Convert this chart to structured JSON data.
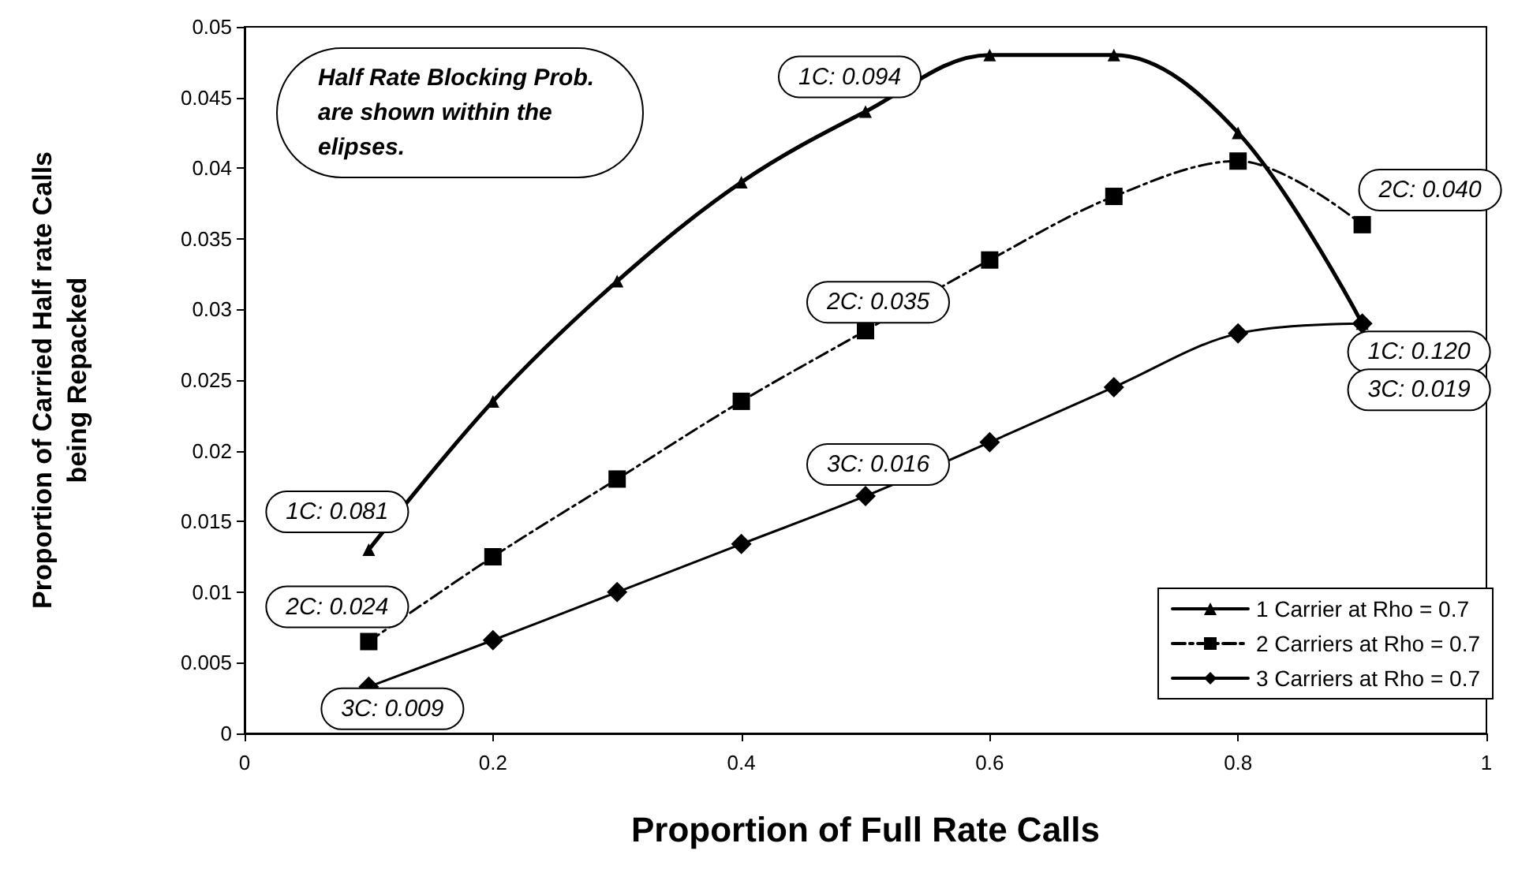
{
  "chart_data": {
    "type": "line",
    "xlabel": "Proportion of Full Rate Calls",
    "ylabel": "Proportion of Carried Half rate Calls\nbeing Repacked",
    "x": [
      0.1,
      0.2,
      0.3,
      0.4,
      0.5,
      0.6,
      0.7,
      0.8,
      0.9
    ],
    "series": [
      {
        "name": "1 Carrier at Rho = 0.7",
        "color": "#000000",
        "marker": "triangle",
        "line_style": "solid",
        "values": [
          0.013,
          0.0235,
          0.032,
          0.039,
          0.044,
          0.048,
          0.048,
          0.0425,
          0.029
        ]
      },
      {
        "name": "2 Carriers at Rho = 0.7",
        "color": "#000000",
        "marker": "square",
        "line_style": "dashed",
        "values": [
          0.0065,
          0.0125,
          0.018,
          0.0235,
          0.0285,
          0.0335,
          0.038,
          0.0405,
          0.036
        ]
      },
      {
        "name": "3 Carriers at Rho = 0.7",
        "color": "#000000",
        "marker": "diamond",
        "line_style": "solid",
        "values": [
          0.0033,
          0.0066,
          0.01,
          0.0134,
          0.0168,
          0.0206,
          0.0245,
          0.0283,
          0.029
        ]
      }
    ],
    "xlim": [
      0,
      1
    ],
    "xticks": [
      0,
      0.2,
      0.4,
      0.6,
      0.8,
      1
    ],
    "ylim": [
      0,
      0.05
    ],
    "yticks": [
      0,
      0.005,
      0.01,
      0.015,
      0.02,
      0.025,
      0.03,
      0.035,
      0.04,
      0.045,
      0.05
    ],
    "grid": false,
    "legend": "bottom right",
    "annotations": [
      "Half Rate Blocking Prob.\nare shown within the\nelipses.",
      {
        "text": "1C: 0.081",
        "x": 0.1,
        "y": 0.013
      },
      {
        "text": "2C: 0.024",
        "x": 0.1,
        "y": 0.0065
      },
      {
        "text": "3C: 0.009",
        "x": 0.1,
        "y": 0.0033
      },
      {
        "text": "1C: 0.094",
        "x": 0.5,
        "y": 0.044
      },
      {
        "text": "2C: 0.035",
        "x": 0.5,
        "y": 0.0285
      },
      {
        "text": "3C: 0.016",
        "x": 0.5,
        "y": 0.0168
      },
      {
        "text": "2C: 0.040",
        "x": 0.9,
        "y": 0.036
      },
      {
        "text": "1C: 0.120",
        "x": 0.9,
        "y": 0.029
      },
      {
        "text": "3C: 0.019",
        "x": 0.9,
        "y": 0.029
      }
    ]
  }
}
